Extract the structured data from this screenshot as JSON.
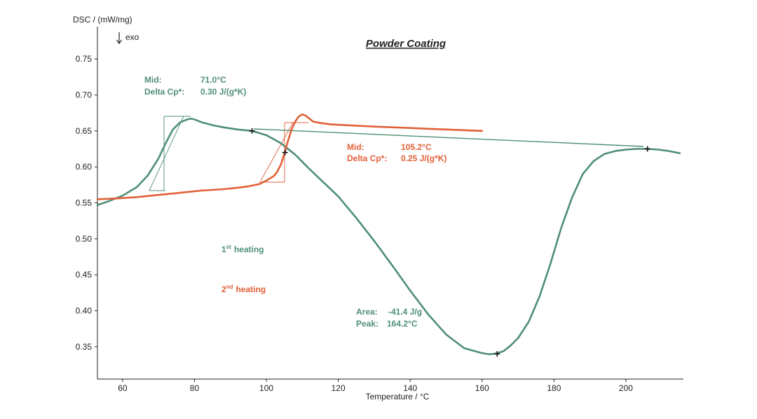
{
  "chart_data": {
    "type": "line",
    "title": "Powder Coating",
    "xlabel": "Temperature / °C",
    "ylabel": "DSC / (mW/mg)",
    "exo_label": "exo",
    "xlim": [
      53,
      216
    ],
    "ylim": [
      0.305,
      0.795
    ],
    "x_ticks": [
      "60",
      "80",
      "100",
      "120",
      "140",
      "160",
      "180",
      "200"
    ],
    "y_ticks": [
      "0.75",
      "0.70",
      "0.65",
      "0.60",
      "0.55",
      "0.50",
      "0.45",
      "0.40",
      "0.35"
    ],
    "grid": false,
    "colors": {
      "first": "#4f8f75",
      "second": "#e2603a",
      "axis": "#222222"
    },
    "series": [
      {
        "name": "1st heating",
        "color": "#4f8f75",
        "x": [
          53,
          56,
          60,
          64,
          67,
          70,
          72,
          74,
          76,
          78,
          79,
          80,
          82,
          85,
          88,
          92,
          96,
          100,
          104,
          108,
          112,
          116,
          120,
          125,
          130,
          135,
          140,
          145,
          150,
          155,
          160,
          162,
          164,
          166,
          168,
          170,
          173,
          176,
          179,
          182,
          185,
          188,
          191,
          194,
          197,
          200,
          203,
          206,
          209,
          212,
          215
        ],
        "y": [
          0.547,
          0.552,
          0.56,
          0.572,
          0.588,
          0.612,
          0.633,
          0.652,
          0.662,
          0.666,
          0.667,
          0.666,
          0.662,
          0.658,
          0.655,
          0.652,
          0.65,
          0.644,
          0.633,
          0.617,
          0.597,
          0.578,
          0.559,
          0.529,
          0.497,
          0.463,
          0.428,
          0.395,
          0.367,
          0.348,
          0.341,
          0.3395,
          0.3405,
          0.344,
          0.352,
          0.362,
          0.385,
          0.42,
          0.465,
          0.515,
          0.557,
          0.59,
          0.608,
          0.618,
          0.622,
          0.624,
          0.625,
          0.625,
          0.624,
          0.622,
          0.619
        ]
      },
      {
        "name": "2nd heating",
        "color": "#e2603a",
        "x": [
          53,
          58,
          64,
          70,
          76,
          82,
          88,
          92,
          95,
          98,
          100,
          102,
          103,
          104,
          105,
          106,
          107,
          108,
          109,
          110,
          111,
          112,
          113,
          115,
          118,
          122,
          126,
          130,
          135,
          140,
          145,
          150,
          155,
          160
        ],
        "y": [
          0.555,
          0.556,
          0.558,
          0.561,
          0.564,
          0.567,
          0.569,
          0.571,
          0.573,
          0.576,
          0.581,
          0.587,
          0.593,
          0.603,
          0.618,
          0.636,
          0.652,
          0.663,
          0.67,
          0.673,
          0.671,
          0.667,
          0.663,
          0.661,
          0.659,
          0.658,
          0.657,
          0.656,
          0.655,
          0.654,
          0.653,
          0.652,
          0.651,
          0.65
        ]
      }
    ],
    "annotations": {
      "mid1": {
        "label": "Mid:",
        "value": "71.0°C",
        "color": "#4f8f75"
      },
      "cp1": {
        "label": "Delta Cp*:",
        "value": "0.30 J/(g*K)",
        "color": "#4f8f75"
      },
      "mid2": {
        "label": "Mid:",
        "value": "105.2°C",
        "color": "#e2603a"
      },
      "cp2": {
        "label": "Delta Cp*:",
        "value": "0.25 J/(g*K)",
        "color": "#e2603a"
      },
      "legend1": {
        "num": "1",
        "sup": "st",
        "text": "heating",
        "color": "#4f8f75"
      },
      "legend2": {
        "num": "2",
        "sup": "nd",
        "text": "heating",
        "color": "#e2603a"
      },
      "area": {
        "label": "Area:",
        "value": "-41.4 J/g",
        "color": "#4f8f75"
      },
      "peak": {
        "label": "Peak:",
        "value": "164.2°C",
        "color": "#4f8f75"
      }
    },
    "markers": [
      {
        "series": 0,
        "x": 96,
        "y": 0.65
      },
      {
        "series": 0,
        "x": 164.2,
        "y": 0.34
      },
      {
        "series": 0,
        "x": 206,
        "y": 0.625
      },
      {
        "series": 1,
        "x": 105.2,
        "y": 0.62
      }
    ]
  }
}
